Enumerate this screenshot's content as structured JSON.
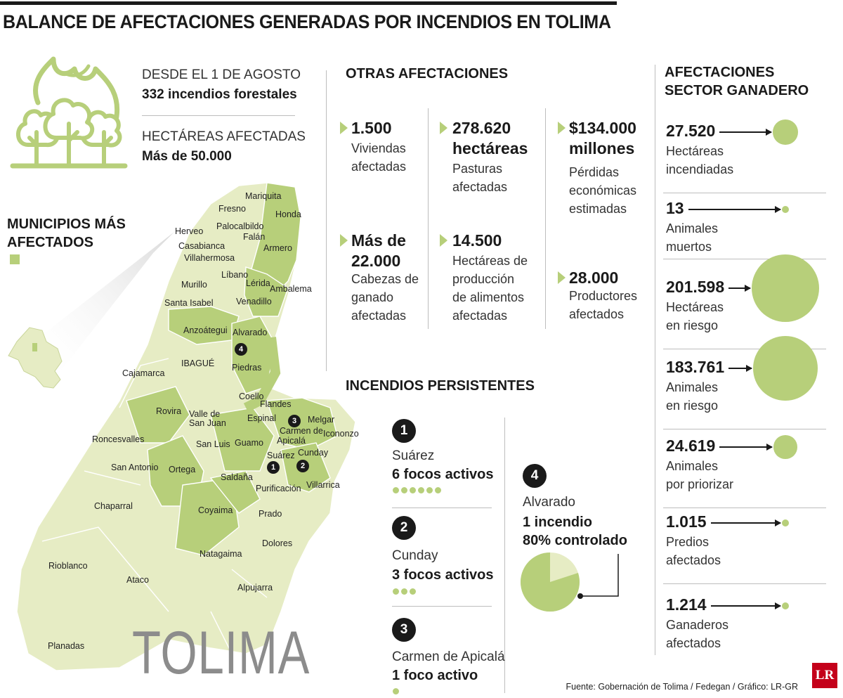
{
  "title": "BALANCE DE AFECTACIONES GENERADAS POR INCENDIOS EN TOLIMA",
  "intro": {
    "since_label": "DESDE EL 1 DE AGOSTO",
    "since_value": "332 incendios forestales",
    "area_label": "HECTÁREAS AFECTADAS",
    "area_value": "Más de 50.000"
  },
  "legend": {
    "heading_line1": "MUNICIPIOS MÁS",
    "heading_line2": "AFECTADOS",
    "affected_color": "#b7cf7a",
    "base_color": "#e6ecc4"
  },
  "map": {
    "region_name": "TOLIMA",
    "municipalities": [
      "Mariquita",
      "Fresno",
      "Honda",
      "Herveo",
      "Palocalbildo",
      "Falán",
      "Casabianca",
      "Villahermosa",
      "Armero",
      "Líbano",
      "Murillo",
      "Lérida",
      "Ambalema",
      "Santa Isabel",
      "Venadillo",
      "Anzoátegui",
      "Alvarado",
      "IBAGUÉ",
      "Piedras",
      "Cajamarca",
      "Coello",
      "Flandes",
      "Rovira",
      "Valle de",
      "San Juan",
      "Espinal",
      "Melgar",
      "Carmen de",
      "Apicalá",
      "Icononzo",
      "Roncesvalles",
      "San Luis",
      "Guamo",
      "Suárez",
      "Cunday",
      "San Antonio",
      "Ortega",
      "Saldaña",
      "Purificación",
      "Villarrica",
      "Chaparral",
      "Coyaima",
      "Prado",
      "Dolores",
      "Natagaima",
      "Rioblanco",
      "Ataco",
      "Alpujarra",
      "Planadas"
    ],
    "markers": [
      "1",
      "2",
      "3",
      "4"
    ]
  },
  "otras": {
    "heading": "OTRAS AFECTACIONES",
    "items": [
      {
        "value": "1.500",
        "desc1": "Viviendas",
        "desc2": "afectadas"
      },
      {
        "value": "278.620",
        "value2": "hectáreas",
        "desc1": "Pasturas",
        "desc2": "afectadas"
      },
      {
        "value": "$134.000",
        "value2": "millones",
        "desc1": "Pérdidas",
        "desc2": "económicas",
        "desc3": "estimadas"
      },
      {
        "value": "Más de",
        "value2": "22.000",
        "desc1": "Cabezas de",
        "desc2": "ganado",
        "desc3": "afectadas"
      },
      {
        "value": "14.500",
        "desc1": "Hectáreas de",
        "desc2": "producción",
        "desc3": "de alimentos",
        "desc4": "afectadas"
      },
      {
        "value": "28.000",
        "desc1": "Productores",
        "desc2": "afectados"
      }
    ]
  },
  "persistentes": {
    "heading": "INCENDIOS PERSISTENTES",
    "items": [
      {
        "num": "1",
        "place": "Suárez",
        "count": "6 focos activos",
        "foci": 6
      },
      {
        "num": "2",
        "place": "Cunday",
        "count": "3 focos activos",
        "foci": 3
      },
      {
        "num": "3",
        "place": "Carmen de Apicalá",
        "count": "1 foco activo",
        "foci": 1
      }
    ],
    "alvarado": {
      "num": "4",
      "place": "Alvarado",
      "line1": "1 incendio",
      "line2": "80% controlado",
      "controlled_fraction": 0.8
    }
  },
  "ganadero": {
    "heading_line1": "AFECTACIONES",
    "heading_line2": "SECTOR GANADERO",
    "items": [
      {
        "value": "27.520",
        "desc1": "Hectáreas",
        "desc2": "incendiadas",
        "magnitude": 27520
      },
      {
        "value": "13",
        "desc1": "Animales",
        "desc2": "muertos",
        "magnitude": 13
      },
      {
        "value": "201.598",
        "desc1": "Hectáreas",
        "desc2": "en riesgo",
        "magnitude": 201598
      },
      {
        "value": "183.761",
        "desc1": "Animales",
        "desc2": "en riesgo",
        "magnitude": 183761
      },
      {
        "value": "24.619",
        "desc1": "Animales",
        "desc2": "por priorizar",
        "magnitude": 24619
      },
      {
        "value": "1.015",
        "desc1": "Predios",
        "desc2": "afectados",
        "magnitude": 1015
      },
      {
        "value": "1.214",
        "desc1": "Ganaderos",
        "desc2": "afectados",
        "magnitude": 1214
      }
    ]
  },
  "source": "Fuente: Gobernación de Tolima / Fedegan / Gráfico: LR-GR",
  "logo": "LR"
}
